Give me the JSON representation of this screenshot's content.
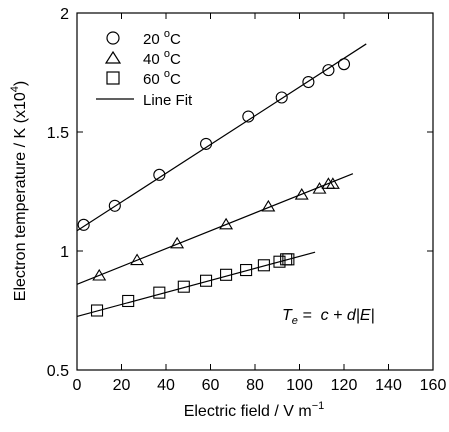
{
  "chart_data": {
    "type": "scatter",
    "xlabel": "Electric field / V m",
    "xlabel_sup": "−1",
    "ylabel": "Electron temperature / K (x10",
    "ylabel_sup": "4",
    "ylabel_close": ")",
    "xlim": [
      0,
      160
    ],
    "ylim": [
      0.5,
      2.0
    ],
    "xticks": [
      0,
      20,
      40,
      60,
      80,
      100,
      120,
      140,
      160
    ],
    "yticks": [
      0.5,
      1,
      1.5,
      2
    ],
    "ytick_labels": [
      "0.5",
      "1",
      "1.5",
      "2"
    ],
    "legend_position": "top-left",
    "equation": {
      "T": "T",
      "sub": "e",
      "rest": " =  c + d|E|"
    },
    "series": [
      {
        "name": "20 °C",
        "name_main": "20 ",
        "name_sup": "o",
        "name_unit": "C",
        "marker": "circle",
        "x": [
          3,
          17,
          37,
          58,
          77,
          92,
          104,
          113,
          120
        ],
        "y": [
          1.11,
          1.19,
          1.32,
          1.45,
          1.565,
          1.645,
          1.71,
          1.76,
          1.785
        ],
        "fit": {
          "x": [
            0,
            130
          ],
          "y": [
            1.085,
            1.87
          ]
        }
      },
      {
        "name": "40 °C",
        "name_main": "40 ",
        "name_sup": "o",
        "name_unit": "C",
        "marker": "triangle",
        "x": [
          10,
          27,
          45,
          67,
          86,
          101,
          109,
          113,
          115
        ],
        "y": [
          0.895,
          0.96,
          1.03,
          1.11,
          1.185,
          1.235,
          1.26,
          1.28,
          1.28
        ],
        "fit": {
          "x": [
            0,
            124
          ],
          "y": [
            0.86,
            1.325
          ]
        }
      },
      {
        "name": "60 °C",
        "name_main": "60 ",
        "name_sup": "o",
        "name_unit": "C",
        "marker": "square",
        "x": [
          9,
          23,
          37,
          48,
          58,
          67,
          76,
          84,
          91,
          94,
          95
        ],
        "y": [
          0.75,
          0.79,
          0.825,
          0.85,
          0.875,
          0.9,
          0.92,
          0.94,
          0.955,
          0.965,
          0.965
        ],
        "fit": {
          "x": [
            0,
            107
          ],
          "y": [
            0.725,
            0.995
          ]
        }
      }
    ],
    "legend_fit_label": "Line Fit"
  }
}
